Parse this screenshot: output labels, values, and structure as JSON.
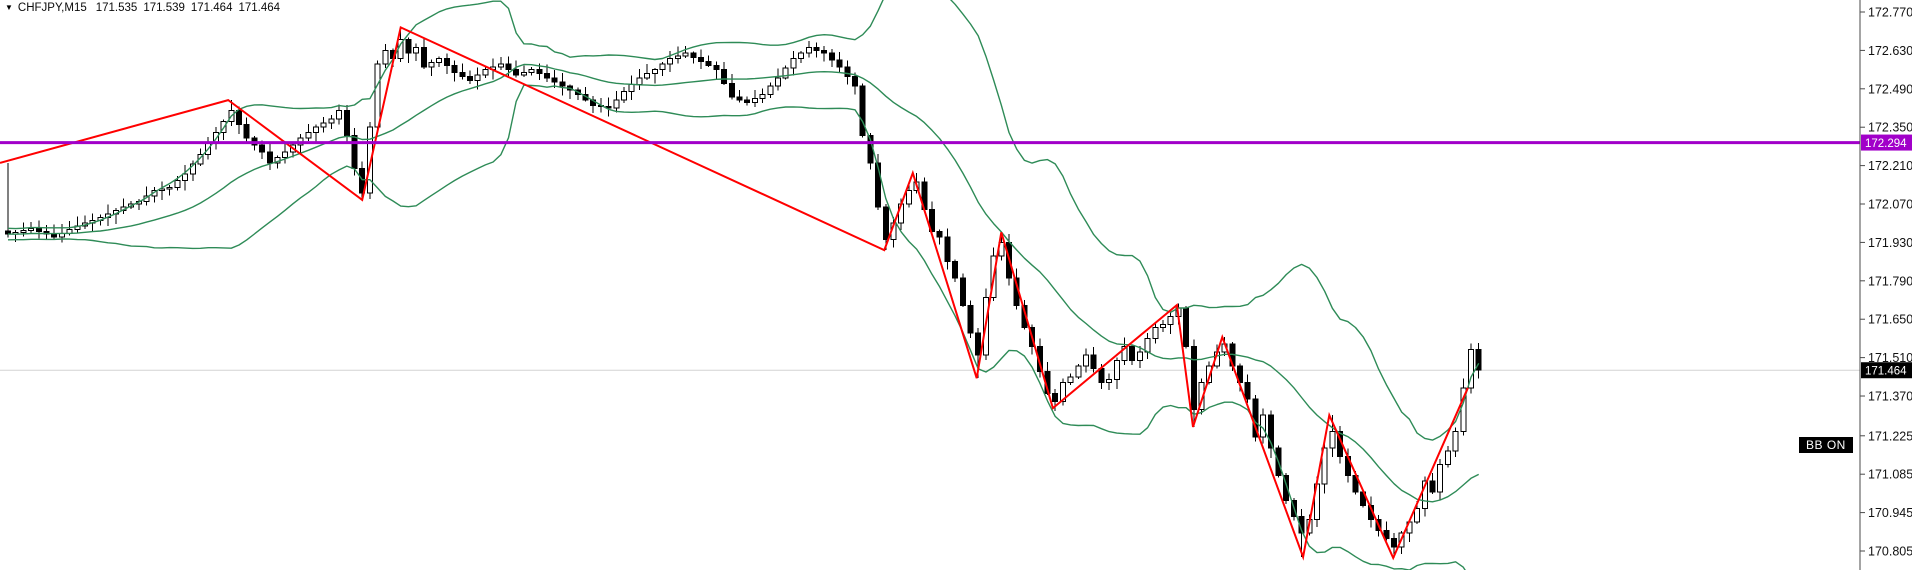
{
  "header": {
    "collapse_icon": "triangle-down",
    "symbol": "CHFJPY,M15",
    "ohlc": {
      "open": "171.535",
      "high": "171.539",
      "low": "171.464",
      "close": "171.464"
    }
  },
  "bb_button": {
    "label": "BB ON",
    "bg": "#000000",
    "color": "#ffffff"
  },
  "price_axis": {
    "current_price_label": "171.464",
    "hline_label": "172.294"
  },
  "colors": {
    "background": "#ffffff",
    "bull": "#ffffff",
    "bear": "#000000",
    "outline": "#000000",
    "axis_line": "#4a4a4a",
    "axis_text": "#111111",
    "current_price_line": "#d4d4d4",
    "current_badge_bg": "#000000",
    "badge_text": "#ffffff"
  },
  "chart_data": {
    "type": "candlestick",
    "title": "CHFJPY,M15",
    "symbol": "CHFJPY",
    "timeframe": "M15",
    "bars": 192,
    "current_price": 171.464,
    "horizontal_line": {
      "price": 172.294,
      "color": "#A100C9"
    },
    "bollinger": {
      "period": 20,
      "deviation": 2,
      "color": "#2E8B57"
    },
    "zigzag": {
      "color": "#FF0000",
      "points": [
        [
          -1.04,
          172.22
        ],
        [
          28.6,
          172.449
        ],
        [
          46.0,
          172.085
        ],
        [
          51.0,
          172.714
        ],
        [
          113.8,
          171.902
        ],
        [
          117.5,
          172.183
        ],
        [
          125.8,
          171.435
        ],
        [
          129.0,
          171.967
        ],
        [
          135.7,
          171.326
        ],
        [
          151.8,
          171.702
        ],
        [
          153.9,
          171.257
        ],
        [
          157.7,
          171.585
        ],
        [
          168.2,
          170.783
        ],
        [
          171.6,
          171.3
        ],
        [
          179.9,
          170.78
        ],
        [
          189.6,
          171.4
        ]
      ]
    },
    "y_axis_ticks": [
      "172.770",
      "172.630",
      "172.490",
      "172.350",
      "172.210",
      "172.070",
      "171.930",
      "171.790",
      "171.650",
      "171.510",
      "171.370",
      "171.225",
      "171.085",
      "170.945",
      "170.805"
    ],
    "close_anchors": [
      [
        0,
        171.96
      ],
      [
        3,
        171.98
      ],
      [
        6,
        171.95
      ],
      [
        9,
        171.99
      ],
      [
        12,
        172.02
      ],
      [
        15,
        172.06
      ],
      [
        17,
        172.08
      ],
      [
        19,
        172.12
      ],
      [
        21,
        172.13
      ],
      [
        23,
        172.18
      ],
      [
        25,
        172.25
      ],
      [
        27,
        172.33
      ],
      [
        29,
        172.41
      ],
      [
        30,
        172.36
      ],
      [
        31,
        172.31
      ],
      [
        33,
        172.26
      ],
      [
        34,
        172.22
      ],
      [
        36,
        172.26
      ],
      [
        38,
        172.31
      ],
      [
        40,
        172.35
      ],
      [
        42,
        172.38
      ],
      [
        43,
        172.41
      ],
      [
        44,
        172.32
      ],
      [
        45,
        172.2
      ],
      [
        46,
        172.11
      ],
      [
        47,
        172.35
      ],
      [
        48,
        172.58
      ],
      [
        49,
        172.63
      ],
      [
        50,
        172.6
      ],
      [
        51,
        172.67
      ],
      [
        52,
        172.62
      ],
      [
        53,
        172.64
      ],
      [
        54,
        172.57
      ],
      [
        56,
        172.6
      ],
      [
        58,
        172.55
      ],
      [
        60,
        172.52
      ],
      [
        62,
        172.56
      ],
      [
        64,
        172.58
      ],
      [
        66,
        172.54
      ],
      [
        68,
        172.56
      ],
      [
        70,
        172.53
      ],
      [
        72,
        172.5
      ],
      [
        74,
        172.47
      ],
      [
        76,
        172.43
      ],
      [
        78,
        172.42
      ],
      [
        80,
        172.48
      ],
      [
        82,
        172.53
      ],
      [
        84,
        172.56
      ],
      [
        86,
        172.6
      ],
      [
        88,
        172.62
      ],
      [
        90,
        172.59
      ],
      [
        92,
        172.56
      ],
      [
        94,
        172.46
      ],
      [
        96,
        172.44
      ],
      [
        98,
        172.47
      ],
      [
        100,
        172.53
      ],
      [
        102,
        172.6
      ],
      [
        104,
        172.64
      ],
      [
        106,
        172.62
      ],
      [
        108,
        172.57
      ],
      [
        110,
        172.5
      ],
      [
        111,
        172.32
      ],
      [
        112,
        172.22
      ],
      [
        113,
        172.06
      ],
      [
        114,
        171.94
      ],
      [
        115,
        172.0
      ],
      [
        116,
        172.07
      ],
      [
        117,
        172.12
      ],
      [
        118,
        172.15
      ],
      [
        119,
        172.05
      ],
      [
        120,
        171.97
      ],
      [
        121,
        171.95
      ],
      [
        122,
        171.86
      ],
      [
        123,
        171.8
      ],
      [
        124,
        171.7
      ],
      [
        125,
        171.6
      ],
      [
        126,
        171.52
      ],
      [
        127,
        171.73
      ],
      [
        128,
        171.88
      ],
      [
        129,
        171.93
      ],
      [
        130,
        171.8
      ],
      [
        131,
        171.7
      ],
      [
        132,
        171.62
      ],
      [
        133,
        171.55
      ],
      [
        134,
        171.46
      ],
      [
        135,
        171.38
      ],
      [
        136,
        171.35
      ],
      [
        137,
        171.42
      ],
      [
        138,
        171.44
      ],
      [
        139,
        171.48
      ],
      [
        140,
        171.52
      ],
      [
        141,
        171.47
      ],
      [
        142,
        171.42
      ],
      [
        143,
        171.43
      ],
      [
        144,
        171.5
      ],
      [
        145,
        171.55
      ],
      [
        146,
        171.5
      ],
      [
        147,
        171.53
      ],
      [
        148,
        171.58
      ],
      [
        149,
        171.62
      ],
      [
        150,
        171.63
      ],
      [
        151,
        171.66
      ],
      [
        152,
        171.69
      ],
      [
        153,
        171.55
      ],
      [
        154,
        171.32
      ],
      [
        155,
        171.42
      ],
      [
        156,
        171.48
      ],
      [
        157,
        171.53
      ],
      [
        158,
        171.56
      ],
      [
        159,
        171.48
      ],
      [
        160,
        171.42
      ],
      [
        161,
        171.36
      ],
      [
        162,
        171.22
      ],
      [
        163,
        171.3
      ],
      [
        164,
        171.18
      ],
      [
        165,
        171.08
      ],
      [
        166,
        170.99
      ],
      [
        167,
        170.93
      ],
      [
        168,
        170.87
      ],
      [
        169,
        170.92
      ],
      [
        170,
        171.05
      ],
      [
        171,
        171.18
      ],
      [
        172,
        171.24
      ],
      [
        173,
        171.15
      ],
      [
        174,
        171.08
      ],
      [
        175,
        171.02
      ],
      [
        176,
        170.97
      ],
      [
        177,
        170.92
      ],
      [
        178,
        170.88
      ],
      [
        179,
        170.85
      ],
      [
        180,
        170.82
      ],
      [
        181,
        170.87
      ],
      [
        182,
        170.91
      ],
      [
        183,
        170.96
      ],
      [
        184,
        171.06
      ],
      [
        185,
        171.02
      ],
      [
        186,
        171.12
      ],
      [
        187,
        171.17
      ],
      [
        188,
        171.24
      ],
      [
        189,
        171.4
      ],
      [
        190,
        171.54
      ],
      [
        191,
        171.464
      ]
    ]
  }
}
